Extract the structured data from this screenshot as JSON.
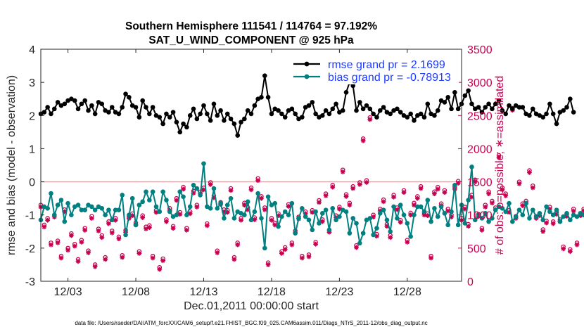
{
  "chart_data": {
    "type": "line",
    "title_line1": "Southern Hemisphere 111541 / 114764 = 97.192%",
    "title_line2": "SAT_U_WIND_COMPONENT @ 925 hPa",
    "xlabel": "Dec.01,2011 00:00:00 start",
    "ylabel_left": "rmse and bias (model - observation)",
    "ylabel_right": "# of obs: o=possible; ∗=assimilated",
    "footer": "data file: /Users/raeder/DAI/ATM_forcXX/CAM6_setup/f.e21.FHIST_BGC.f09_025.CAM6assim.011/Diags_NTrS_2011-12/obs_diag_output.nc",
    "xticks": [
      "12/03",
      "12/08",
      "12/13",
      "12/18",
      "12/23",
      "12/28"
    ],
    "xtick_days": [
      3,
      8,
      13,
      18,
      23,
      28
    ],
    "xlim": [
      1,
      32
    ],
    "ylim_left": [
      -3,
      4
    ],
    "yticks_left": [
      "-3",
      "-2",
      "-1",
      "0",
      "1",
      "2",
      "3",
      "4"
    ],
    "ylim_right": [
      0,
      3500
    ],
    "yticks_right": [
      "0",
      "500",
      "1000",
      "1500",
      "2000",
      "2500",
      "3000",
      "3500"
    ],
    "zero_line": 0,
    "legend": {
      "position": "top-right",
      "entries": [
        "rmse grand pr = 2.1699",
        "bias grand pr = -0.78913"
      ]
    },
    "colors": {
      "rmse": "#000000",
      "bias": "#008080",
      "obs": "#c8004f",
      "legend_text": "#1e3cff",
      "zero_line": "#d9a6a6"
    },
    "series": [
      {
        "name": "rmse",
        "start_day": 1,
        "step_days": 0.25,
        "values": [
          2.05,
          2.1,
          2.25,
          2.05,
          2.2,
          2.4,
          2.3,
          2.35,
          2.45,
          2.5,
          2.45,
          2.2,
          2.35,
          2.45,
          2.15,
          2.3,
          2.05,
          2.4,
          2.35,
          2.15,
          2.1,
          2.25,
          2.1,
          2.05,
          2.25,
          2.65,
          2.55,
          2.3,
          2.25,
          1.95,
          2.45,
          2.25,
          2.05,
          2.25,
          2.0,
          1.95,
          1.75,
          2.05,
          1.95,
          2.1,
          1.8,
          1.5,
          1.75,
          1.65,
          2.0,
          2.2,
          1.9,
          2.05,
          2.3,
          2.05,
          1.85,
          2.35,
          2.0,
          2.15,
          1.85,
          2.05,
          1.9,
          1.75,
          1.4,
          1.8,
          1.9,
          2.15,
          2.05,
          2.3,
          2.5,
          2.55,
          3.2,
          2.55,
          2.05,
          2.2,
          2.15,
          2.05,
          1.95,
          2.15,
          2.2,
          2.05,
          1.9,
          1.95,
          2.25,
          2.3,
          2.4,
          2.05,
          1.95,
          2.0,
          2.15,
          2.05,
          2.2,
          2.35,
          2.1,
          2.15,
          2.7,
          3.0,
          2.9,
          2.15,
          2.4,
          2.2,
          2.3,
          2.2,
          2.05,
          1.95,
          2.15,
          2.25,
          2.1,
          2.05,
          2.15,
          2.2,
          2.1,
          2.0,
          1.95,
          2.05,
          1.85,
          2.0,
          2.05,
          1.95,
          2.35,
          2.05,
          2.0,
          2.15,
          2.45,
          2.4,
          2.55,
          2.2,
          2.7,
          2.2,
          2.35,
          2.6,
          2.75,
          2.35,
          2.2,
          2.25,
          2.1,
          2.25,
          2.35,
          2.2,
          2.35,
          2.45,
          2.15,
          2.05,
          2.3,
          2.2,
          2.3,
          2.25,
          2.25,
          2.05,
          2.0,
          2.2,
          2.05,
          2.0,
          1.95,
          2.05,
          2.35,
          2.05,
          1.75,
          2.1,
          2.15,
          2.25,
          2.5,
          2.1
        ]
      },
      {
        "name": "bias",
        "start_day": 1,
        "step_days": 0.25,
        "values": [
          -1.15,
          -0.75,
          -0.8,
          -0.35,
          -1.0,
          -0.7,
          -0.55,
          -1.2,
          -0.65,
          -1.0,
          -0.75,
          -0.7,
          -0.85,
          -0.85,
          -0.7,
          -0.75,
          -0.85,
          -0.75,
          -0.8,
          -1.0,
          -0.85,
          -1.15,
          -0.85,
          -0.85,
          -0.4,
          -1.6,
          -1.0,
          -0.5,
          -1.3,
          -0.7,
          -0.6,
          -0.3,
          -0.55,
          -0.3,
          -0.75,
          -0.9,
          -0.3,
          -0.55,
          -0.9,
          -1.05,
          -1.0,
          -0.3,
          -0.45,
          -1.0,
          -0.75,
          -0.1,
          -0.2,
          -0.4,
          0.55,
          -0.75,
          -0.8,
          -0.2,
          -0.8,
          -0.65,
          -1.1,
          -0.7,
          -0.5,
          -1.1,
          -0.9,
          -0.95,
          -1.0,
          -0.6,
          -1.15,
          -0.9,
          -0.35,
          -1.1,
          -2.0,
          -0.45,
          -0.7,
          -0.65,
          -1.35,
          -1.05,
          -0.9,
          -1.0,
          -0.65,
          -1.55,
          -1.1,
          -0.8,
          -1.05,
          -1.15,
          -1.45,
          -0.9,
          -1.25,
          -0.95,
          -0.85,
          -1.45,
          -0.8,
          -1.15,
          -1.05,
          -0.85,
          -0.9,
          -1.55,
          -1.1,
          -1.25,
          -1.85,
          -1.55,
          -1.15,
          -1.1,
          -1.6,
          -1.4,
          -0.95,
          -0.85,
          -1.15,
          -1.5,
          -0.75,
          -1.1,
          -0.7,
          -1.0,
          -1.25,
          -1.65,
          -1.0,
          -0.75,
          -0.75,
          -0.9,
          -0.55,
          -1.2,
          -0.8,
          -1.05,
          -0.75,
          -0.95,
          -1.3,
          -0.9,
          -0.1,
          -1.3,
          -0.7,
          -1.25,
          -0.55,
          0.45,
          -1.15,
          -1.0,
          -1.1,
          -0.95,
          -1.2,
          -1.1,
          -0.85,
          -0.75,
          -0.8,
          -0.9,
          -0.65,
          -1.2,
          -1.05,
          -0.85,
          -1.0,
          -0.65,
          -1.1,
          -0.85,
          -1.05,
          -0.95,
          -1.15,
          -0.75,
          -0.9,
          -1.0,
          -0.85,
          -1.2,
          -1.05,
          -0.95,
          -1.15,
          -1.0,
          -1.05,
          -0.95,
          -1.0
        ]
      },
      {
        "name": "obs_possible",
        "start_day": 1,
        "step_days": 0.25,
        "values": [
          1150,
          850,
          950,
          580,
          1000,
          610,
          380,
          1080,
          500,
          720,
          560,
          330,
          620,
          800,
          460,
          980,
          250,
          790,
          690,
          360,
          900,
          760,
          950,
          670,
          390,
          770,
          980,
          1020,
          880,
          450,
          990,
          820,
          840,
          380,
          1070,
          210,
          340,
          930,
          1100,
          830,
          1250,
          1040,
          1420,
          800,
          1050,
          1360,
          1150,
          1350,
          1410,
          870,
          1490,
          1290,
          460,
          1190,
          1080,
          1070,
          1400,
          360,
          580,
          950,
          1180,
          1110,
          1410,
          960,
          1550,
          1280,
          1110,
          280,
          950,
          880,
          1020,
          450,
          510,
          1160,
          580,
          760,
          970,
          380,
          1050,
          400,
          1070,
          590,
          1220,
          930,
          1320,
          770,
          1450,
          990,
          1120,
          1680,
          1310,
          1180,
          1430,
          540,
          1490,
          2150,
          1520,
          2470,
          1000,
          710,
          1090,
          1230,
          860,
          690,
          1300,
          1110,
          920,
          1370,
          620,
          1030,
          1180,
          1280,
          1430,
          1030,
          1020,
          380,
          1350,
          1420,
          1170,
          1370,
          1090,
          1000,
          1420,
          1510,
          950,
          1120,
          860,
          1300,
          1530,
          1010,
          800,
          1150,
          1350,
          1210,
          1110,
          1900,
          1410,
          1320,
          1070,
          2610,
          980,
          1500,
          1170,
          1210,
          1670,
          1440,
          980,
          1020,
          780,
          910,
          1120,
          900,
          1040,
          930,
          520,
          1010,
          480,
          1090,
          580,
          1020,
          1090,
          720
        ]
      },
      {
        "name": "obs_assimilated",
        "start_day": 1,
        "step_days": 0.25,
        "values": [
          1120,
          820,
          920,
          550,
          970,
          580,
          350,
          1050,
          470,
          690,
          530,
          300,
          590,
          770,
          430,
          950,
          220,
          760,
          660,
          330,
          870,
          730,
          920,
          640,
          360,
          740,
          950,
          990,
          850,
          420,
          960,
          790,
          810,
          350,
          1040,
          180,
          310,
          900,
          1070,
          800,
          1220,
          1010,
          1390,
          770,
          1020,
          1330,
          1120,
          1320,
          1380,
          840,
          1460,
          1260,
          430,
          1160,
          1050,
          1040,
          1370,
          330,
          550,
          920,
          1150,
          1080,
          1380,
          930,
          1520,
          1250,
          1080,
          250,
          920,
          850,
          990,
          420,
          480,
          1130,
          550,
          730,
          940,
          350,
          1020,
          370,
          1040,
          560,
          1190,
          900,
          1290,
          740,
          1420,
          960,
          1090,
          1650,
          1280,
          1150,
          1400,
          510,
          1460,
          2120,
          1490,
          2440,
          970,
          680,
          1060,
          1200,
          830,
          660,
          1270,
          1080,
          890,
          1340,
          590,
          1000,
          1150,
          1250,
          1400,
          1000,
          990,
          350,
          1320,
          1390,
          1140,
          1340,
          1060,
          970,
          1390,
          1480,
          920,
          1090,
          830,
          1270,
          1500,
          980,
          770,
          1120,
          1320,
          1180,
          1080,
          1870,
          1380,
          1290,
          1040,
          2580,
          950,
          1470,
          1140,
          1180,
          1640,
          1410,
          950,
          990,
          750,
          880,
          1090,
          870,
          1010,
          900,
          490,
          980,
          450,
          1060,
          550,
          990,
          1060,
          0
        ]
      }
    ]
  }
}
